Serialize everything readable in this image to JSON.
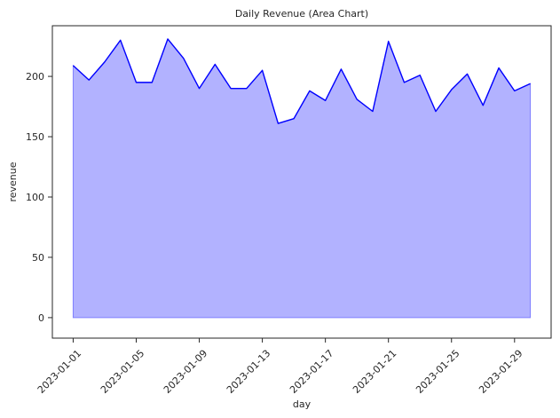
{
  "chart_data": {
    "type": "area",
    "title": "Daily Revenue (Area Chart)",
    "xlabel": "day",
    "ylabel": "revenue",
    "x": [
      "2023-01-01",
      "2023-01-02",
      "2023-01-03",
      "2023-01-04",
      "2023-01-05",
      "2023-01-06",
      "2023-01-07",
      "2023-01-08",
      "2023-01-09",
      "2023-01-10",
      "2023-01-11",
      "2023-01-12",
      "2023-01-13",
      "2023-01-14",
      "2023-01-15",
      "2023-01-16",
      "2023-01-17",
      "2023-01-18",
      "2023-01-19",
      "2023-01-20",
      "2023-01-21",
      "2023-01-22",
      "2023-01-23",
      "2023-01-24",
      "2023-01-25",
      "2023-01-26",
      "2023-01-27",
      "2023-01-28",
      "2023-01-29",
      "2023-01-30"
    ],
    "series": [
      {
        "values": [
          209,
          197,
          212,
          230,
          195,
          195,
          231,
          215,
          190,
          210,
          190,
          190,
          205,
          161,
          165,
          188,
          180,
          206,
          181,
          171,
          229,
          195,
          201,
          171,
          189,
          202,
          176,
          207,
          188,
          194
        ],
        "line_color": "#0000ff",
        "fill_color": "#b2b2ff"
      }
    ],
    "x_ticks": [
      "2023-01-01",
      "2023-01-05",
      "2023-01-09",
      "2023-01-13",
      "2023-01-17",
      "2023-01-21",
      "2023-01-25",
      "2023-01-29"
    ],
    "y_ticks": [
      0,
      50,
      100,
      150,
      200
    ],
    "ylim": [
      -17,
      242
    ],
    "grid": false,
    "legend": "none"
  }
}
